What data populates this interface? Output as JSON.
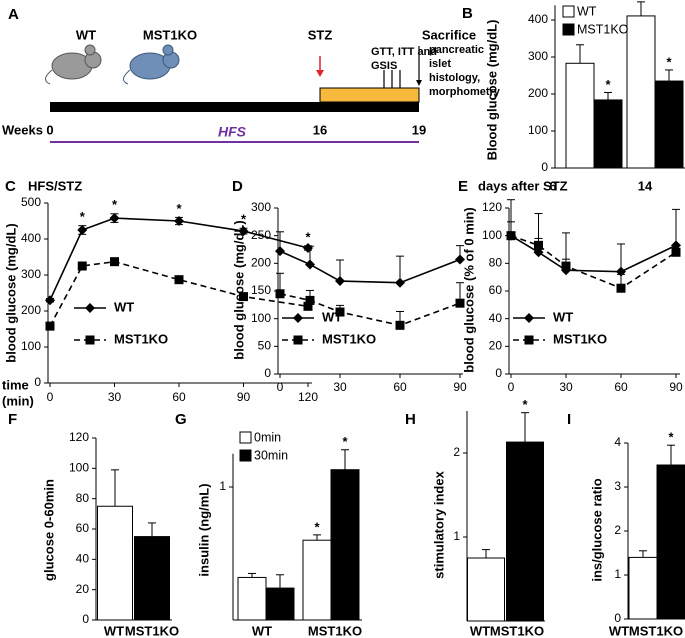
{
  "timeline": {
    "panel_label": "A",
    "groups": [
      "WT",
      "MST1KO"
    ],
    "treatment": "STZ",
    "tests": [
      "GTT, ITT and",
      "GSIS"
    ],
    "endpoint": "Sacrifice",
    "endpoint_details": [
      "pancreatic",
      "islet",
      "histology,",
      "morphometry"
    ],
    "axis_label": "Weeks",
    "ticks": [
      0,
      16,
      19
    ],
    "diet": "HFS"
  },
  "chart_data": [
    {
      "panel_label": "B",
      "type": "bar",
      "y_label": "Blood glucose (mg/dL)",
      "x_label": "days after STZ",
      "categories": [
        "6",
        "14"
      ],
      "series": [
        {
          "name": "WT",
          "color": "#ffffff",
          "values": [
            283,
            411
          ],
          "errors": [
            50,
            38
          ]
        },
        {
          "name": "MST1KO",
          "color": "#000000",
          "values": [
            184,
            235
          ],
          "errors": [
            20,
            30
          ],
          "significance": [
            "*",
            "*"
          ]
        }
      ],
      "ylim": [
        0,
        440
      ],
      "yticks": [
        0,
        100,
        200,
        300,
        400
      ]
    },
    {
      "panel_label": "C",
      "type": "line",
      "subtitle": "HFS/STZ",
      "y_label": "blood glucose (mg/dL)",
      "x_label": [
        "time",
        "(min)"
      ],
      "error_bars": "both",
      "x": [
        0,
        15,
        30,
        60,
        90,
        120
      ],
      "series": [
        {
          "name": "WT",
          "color": "#000000",
          "marker": "diamond",
          "line_style": "solid",
          "values": [
            230,
            425,
            458,
            450,
            422,
            375
          ],
          "errors": [
            5,
            12,
            12,
            10,
            8,
            6
          ],
          "significance": [
            null,
            "*",
            "*",
            "*",
            "*",
            "*"
          ]
        },
        {
          "name": "MST1KO",
          "color": "#000000",
          "marker": "square",
          "line_style": "dashed",
          "values": [
            158,
            325,
            337,
            287,
            240,
            213
          ],
          "errors": [
            5,
            8,
            10,
            8,
            6,
            6
          ]
        }
      ],
      "xlim": [
        0,
        120
      ],
      "xticks": [
        0,
        30,
        60,
        90,
        120
      ],
      "ylim": [
        0,
        500
      ],
      "yticks": [
        0,
        100,
        200,
        300,
        400,
        500
      ]
    },
    {
      "panel_label": "D",
      "type": "line",
      "y_label": "blood glucose (mg/dL)",
      "error_bars": "upper",
      "x": [
        0,
        15,
        30,
        60,
        90
      ],
      "series": [
        {
          "name": "WT",
          "color": "#000000",
          "marker": "diamond",
          "line_style": "solid",
          "values": [
            222,
            198,
            168,
            165,
            207
          ],
          "errors": [
            35,
            33,
            38,
            48,
            25
          ]
        },
        {
          "name": "MST1KO",
          "color": "#000000",
          "marker": "square",
          "line_style": "dashed",
          "values": [
            145,
            133,
            112,
            88,
            128
          ],
          "errors": [
            37,
            18,
            12,
            25,
            37
          ]
        }
      ],
      "xlim": [
        0,
        90
      ],
      "xticks": [
        0,
        30,
        60,
        90
      ],
      "ylim": [
        0,
        300
      ],
      "yticks": [
        0,
        50,
        100,
        150,
        200,
        250,
        300
      ]
    },
    {
      "panel_label": "E",
      "type": "line",
      "y_label": "blood glucose (% of 0 min)",
      "error_bars": "upper",
      "x": [
        0,
        15,
        30,
        60,
        90
      ],
      "series": [
        {
          "name": "WT",
          "color": "#000000",
          "marker": "diamond",
          "line_style": "solid",
          "values": [
            100,
            88,
            75,
            74,
            93
          ],
          "errors": [
            26,
            28,
            27,
            20,
            26
          ]
        },
        {
          "name": "MST1KO",
          "color": "#000000",
          "marker": "square",
          "line_style": "dashed",
          "values": [
            100,
            93,
            78,
            62,
            88
          ],
          "errors": [
            10,
            5,
            5,
            10,
            5
          ]
        }
      ],
      "xlim": [
        0,
        90
      ],
      "xticks": [
        0,
        30,
        60,
        90
      ],
      "ylim": [
        0,
        120
      ],
      "yticks": [
        0,
        20,
        40,
        60,
        80,
        100,
        120
      ]
    },
    {
      "panel_label": "F",
      "type": "bar",
      "y_label": "glucose 0-60min",
      "categories": [
        "WT",
        "MST1KO"
      ],
      "series": [
        {
          "colors": [
            "#ffffff",
            "#000000"
          ],
          "values": [
            75,
            55
          ],
          "errors": [
            24,
            9
          ]
        }
      ],
      "ylim": [
        0,
        120
      ],
      "yticks": [
        0,
        20,
        40,
        60,
        80,
        100,
        120
      ]
    },
    {
      "panel_label": "G",
      "type": "bar",
      "y_label": "insulin (ng/mL)",
      "categories": [
        "WT",
        "MST1KO"
      ],
      "series": [
        {
          "name": "0min",
          "color": "#ffffff",
          "values": [
            0.32,
            0.6
          ],
          "errors": [
            0.03,
            0.04
          ],
          "significance": [
            null,
            "*"
          ]
        },
        {
          "name": "30min",
          "color": "#000000",
          "values": [
            0.24,
            1.13
          ],
          "errors": [
            0.1,
            0.15
          ],
          "significance": [
            null,
            "*"
          ]
        }
      ],
      "ylim": [
        0,
        1.25
      ],
      "yticks": [
        1
      ]
    },
    {
      "panel_label": "H",
      "type": "bar",
      "y_label": "stimulatory index",
      "categories": [
        "WT",
        "MST1KO"
      ],
      "series": [
        {
          "colors": [
            "#ffffff",
            "#000000"
          ],
          "values": [
            0.75,
            2.13
          ],
          "errors": [
            0.1,
            0.35
          ],
          "significance": [
            null,
            "*"
          ]
        }
      ],
      "ylim": [
        0,
        2.5
      ],
      "yticks": [
        1,
        2
      ]
    },
    {
      "panel_label": "I",
      "type": "bar",
      "y_label": "ins/glucose ratio",
      "categories": [
        "WT",
        "MST1KO"
      ],
      "series": [
        {
          "colors": [
            "#ffffff",
            "#000000"
          ],
          "values": [
            1.4,
            3.5
          ],
          "errors": [
            0.15,
            0.45
          ],
          "significance": [
            null,
            "*"
          ]
        }
      ],
      "ylim": [
        0,
        4
      ],
      "yticks": [
        0,
        1,
        2,
        3,
        4
      ]
    }
  ]
}
